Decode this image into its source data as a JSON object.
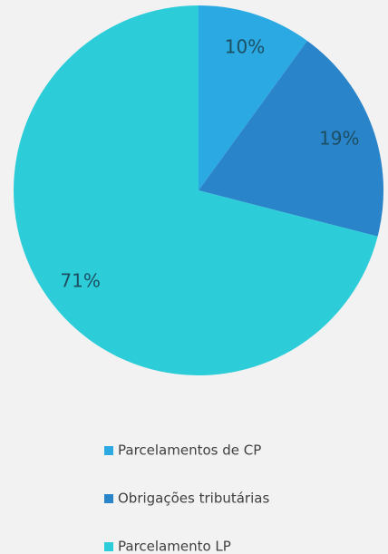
{
  "chart_data": {
    "type": "pie",
    "categories": [
      "Parcelamentos de CP",
      "Obrigações tributárias",
      "Parcelamento LP"
    ],
    "values": [
      10,
      19,
      71
    ],
    "value_labels": [
      "10%",
      "19%",
      "71%"
    ],
    "colors": [
      "#2aa9e2",
      "#2a84c9",
      "#2ccdd8"
    ],
    "legend": "bottom"
  }
}
